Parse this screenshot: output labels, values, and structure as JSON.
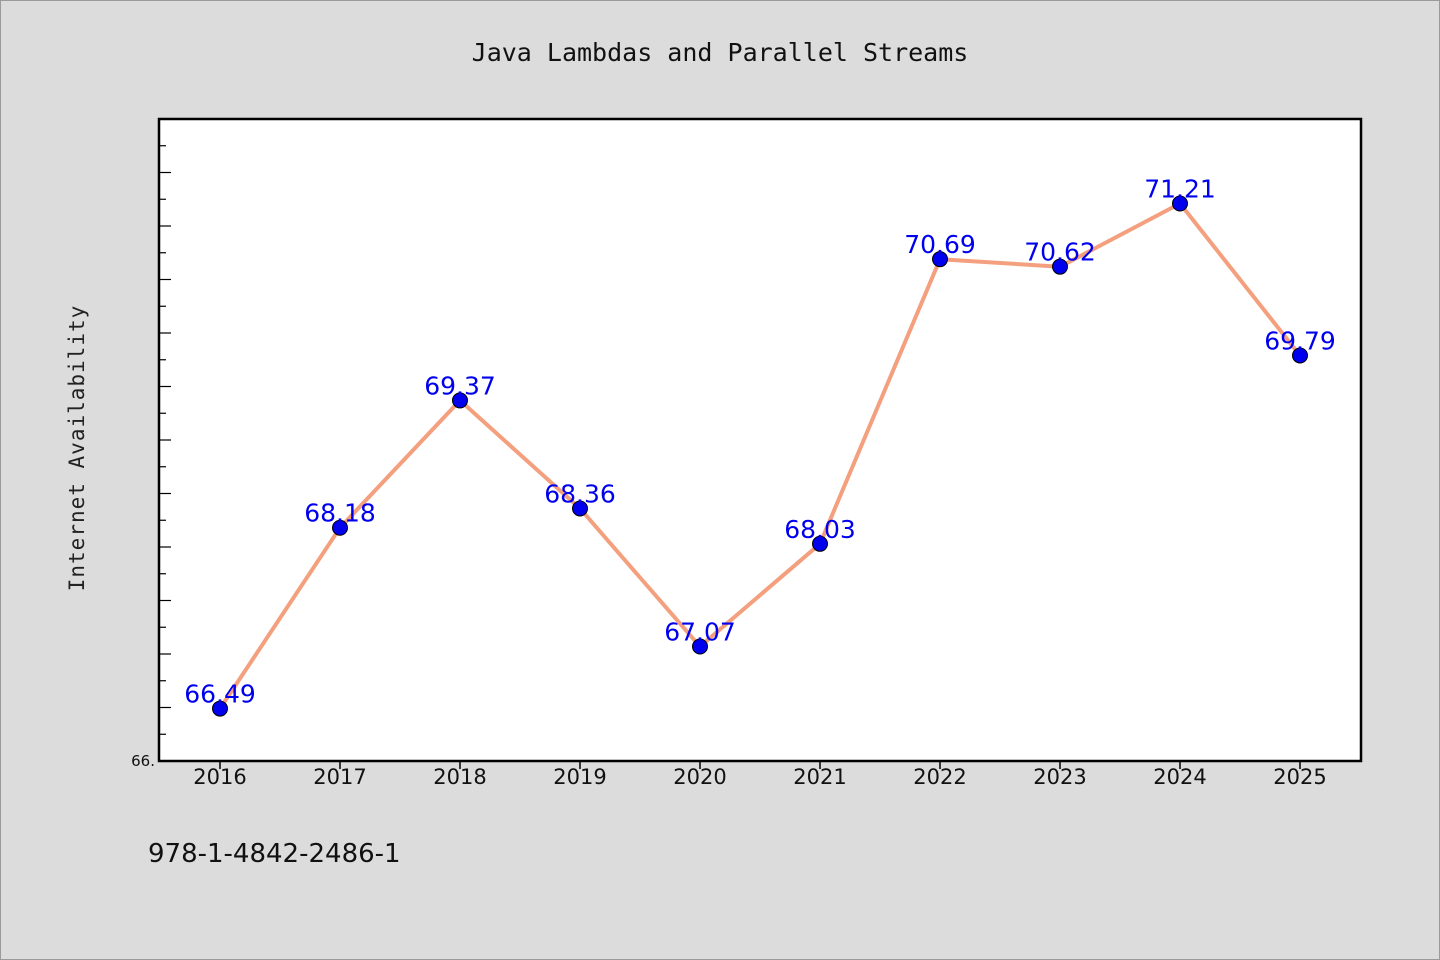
{
  "chart_data": {
    "type": "line",
    "title": "Java Lambdas and Parallel Streams",
    "xlabel": "",
    "ylabel": "Internet Availability",
    "categories": [
      "2016",
      "2017",
      "2018",
      "2019",
      "2020",
      "2021",
      "2022",
      "2023",
      "2024",
      "2025"
    ],
    "series": [
      {
        "values": [
          66.49,
          68.18,
          69.37,
          68.36,
          67.07,
          68.03,
          70.69,
          70.62,
          71.21,
          69.79
        ],
        "line_color": "#f4a07e",
        "marker_color": "#0000ee",
        "label_color": "#0000ee"
      }
    ],
    "data_labels": [
      "66.49",
      "68.18",
      "69.37",
      "68.36",
      "67.07",
      "68.03",
      "70.69",
      "70.62",
      "71.21",
      "69.79"
    ],
    "ylim": [
      66.0,
      72.0
    ],
    "y_tick_label_visible": "66.",
    "grid": false,
    "legend": "none"
  },
  "footer_text": "978-1-4842-2486-1"
}
